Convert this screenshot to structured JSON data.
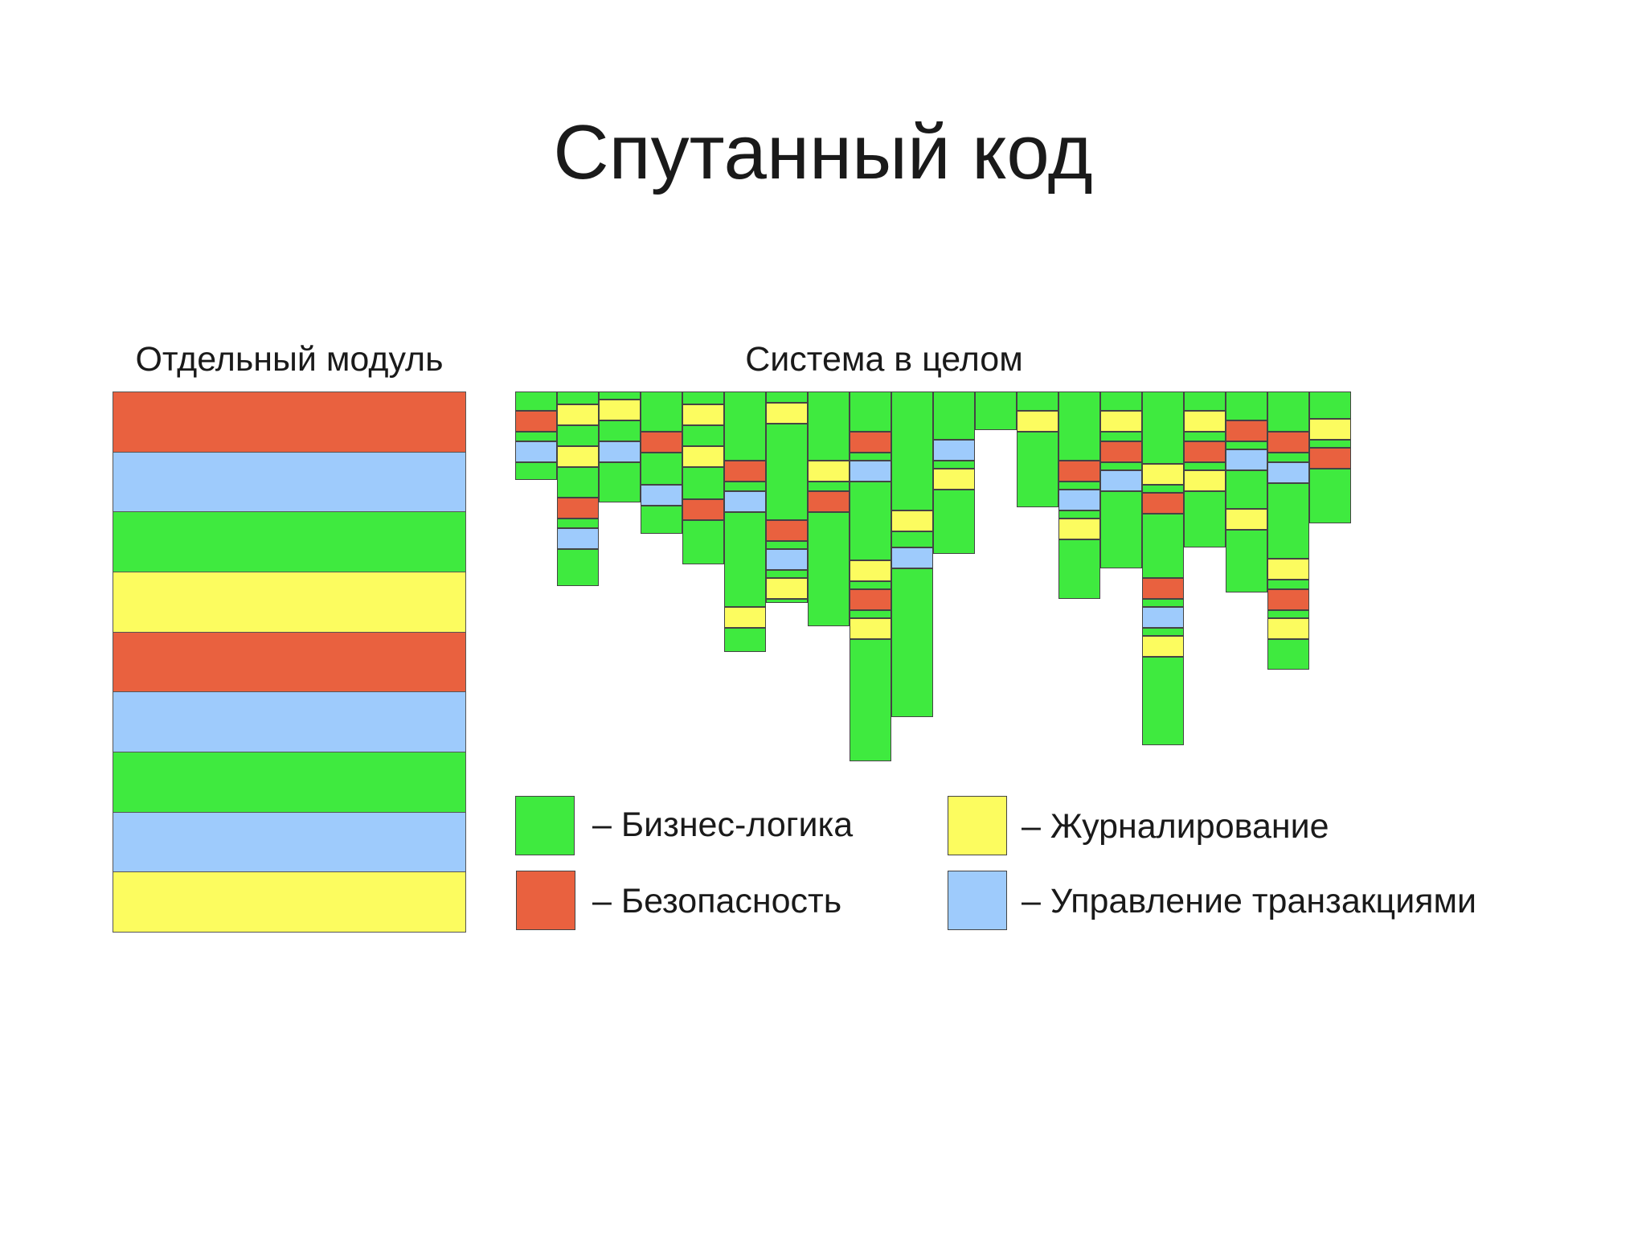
{
  "title": "Спутанный код",
  "module_label": "Отдельный модуль",
  "system_label": "Система в целом",
  "colors": {
    "business": "#3fea3f",
    "security": "#e9613f",
    "logging": "#fcfc5f",
    "transactions": "#9ecbfc"
  },
  "module_bands": [
    "security",
    "transactions",
    "business",
    "logging",
    "security",
    "transactions",
    "business",
    "transactions",
    "logging"
  ],
  "legend": [
    {
      "key": "business",
      "label": "– Бизнес-логика"
    },
    {
      "key": "security",
      "label": "– Безопасность"
    },
    {
      "key": "logging",
      "label": "– Журналирование"
    },
    {
      "key": "transactions",
      "label": "– Управление транзакциями"
    }
  ]
}
